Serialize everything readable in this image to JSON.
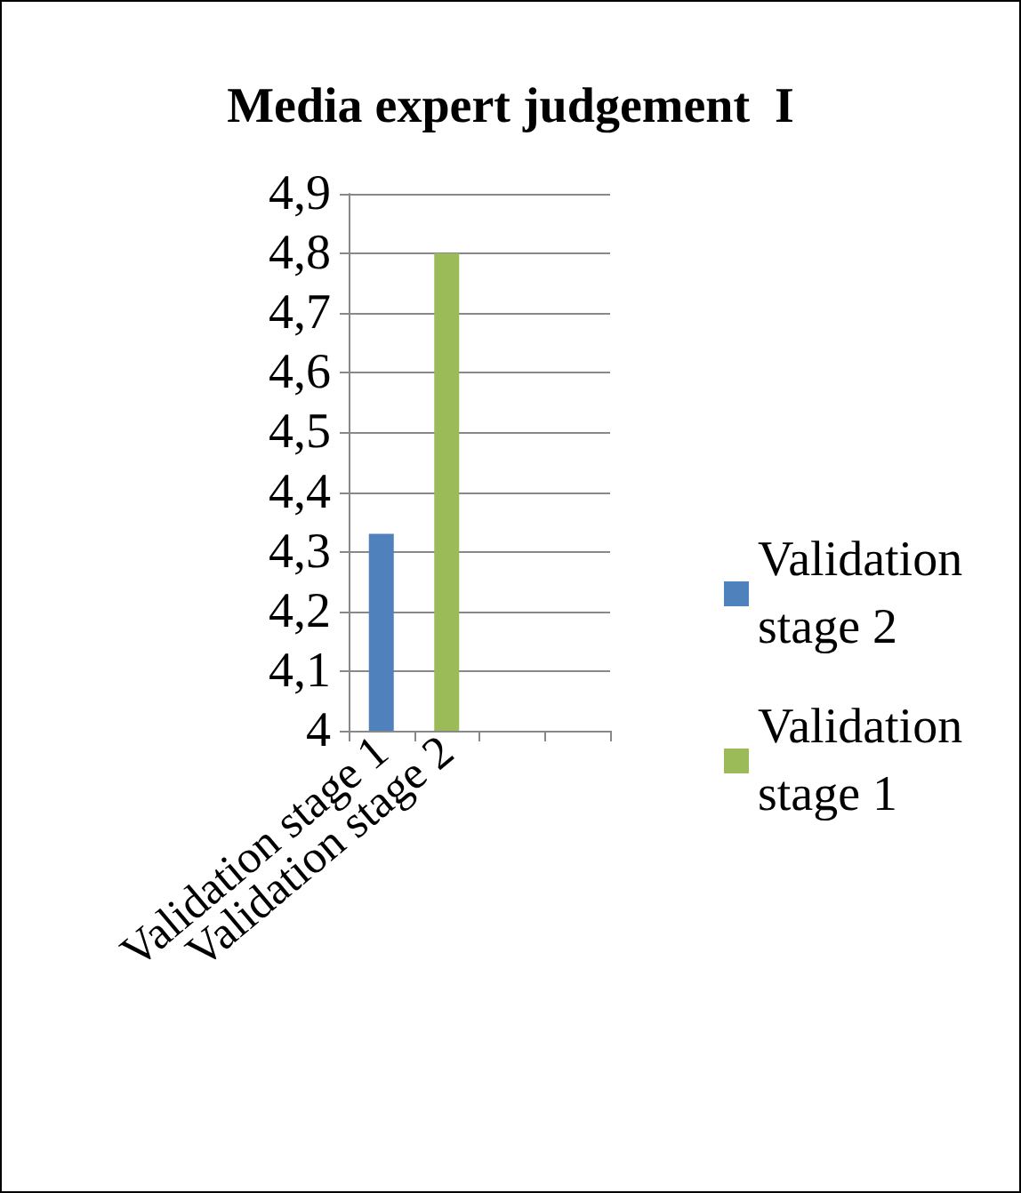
{
  "chart_data": {
    "type": "bar",
    "title": "Media expert judgement  I",
    "categories": [
      "Validation stage 1",
      "Validation stage 2",
      null,
      null
    ],
    "series": [
      {
        "name": "Validation stage 2",
        "color": "#4f81bd",
        "values": [
          4.33,
          null,
          null,
          null
        ]
      },
      {
        "name": "Validation stage 1",
        "color": "#9bbb59",
        "values": [
          null,
          4.8,
          null,
          null
        ]
      }
    ],
    "ylim": [
      4,
      4.9
    ],
    "yticks": [
      {
        "value": 4,
        "label": "4"
      },
      {
        "value": 4.1,
        "label": "4,1"
      },
      {
        "value": 4.2,
        "label": "4,2"
      },
      {
        "value": 4.3,
        "label": "4,3"
      },
      {
        "value": 4.4,
        "label": "4,4"
      },
      {
        "value": 4.5,
        "label": "4,5"
      },
      {
        "value": 4.6,
        "label": "4,6"
      },
      {
        "value": 4.7,
        "label": "4,7"
      },
      {
        "value": 4.8,
        "label": "4,8"
      },
      {
        "value": 4.9,
        "label": "4,9"
      }
    ],
    "grid": "y",
    "legend": "right"
  }
}
